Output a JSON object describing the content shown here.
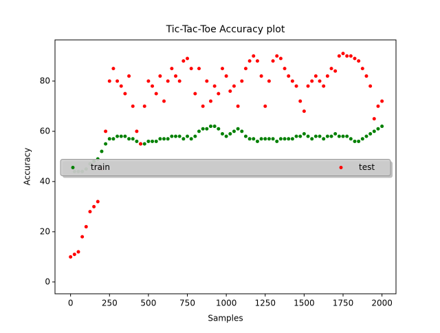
{
  "chart_data": {
    "type": "scatter",
    "title": "Tic-Tac-Toe Accuracy plot",
    "x_label": "Samples",
    "y_label": "Accuracy",
    "x": [
      0,
      25,
      50,
      75,
      100,
      125,
      150,
      175,
      200,
      225,
      250,
      275,
      300,
      325,
      350,
      375,
      400,
      425,
      450,
      475,
      500,
      525,
      550,
      575,
      600,
      625,
      650,
      675,
      700,
      725,
      750,
      775,
      800,
      825,
      850,
      875,
      900,
      925,
      950,
      975,
      1000,
      1025,
      1050,
      1075,
      1100,
      1125,
      1150,
      1175,
      1200,
      1225,
      1250,
      1275,
      1300,
      1325,
      1350,
      1375,
      1400,
      1425,
      1450,
      1475,
      1500,
      1525,
      1550,
      1575,
      1600,
      1625,
      1650,
      1675,
      1700,
      1725,
      1750,
      1775,
      1800,
      1825,
      1850,
      1875,
      1900,
      1925,
      1950,
      1975,
      2000
    ],
    "series": [
      {
        "name": "train",
        "color": "#008000",
        "values": [
          null,
          44,
          44,
          44,
          45,
          47,
          48,
          49,
          52,
          55,
          57,
          57,
          58,
          58,
          58,
          57,
          57,
          56,
          55,
          55,
          56,
          56,
          56,
          57,
          57,
          57,
          58,
          58,
          58,
          57,
          58,
          57,
          58,
          60,
          61,
          61,
          62,
          62,
          61,
          59,
          58,
          59,
          60,
          61,
          60,
          58,
          57,
          57,
          56,
          57,
          57,
          57,
          57,
          56,
          57,
          57,
          57,
          57,
          58,
          58,
          59,
          58,
          57,
          58,
          58,
          57,
          58,
          58,
          59,
          58,
          58,
          58,
          57,
          56,
          56,
          57,
          58,
          59,
          60,
          61,
          62
        ]
      },
      {
        "name": "test",
        "color": "#ff0000",
        "values": [
          10,
          11,
          12,
          18,
          22,
          28,
          30,
          32,
          45,
          60,
          80,
          85,
          80,
          78,
          75,
          82,
          70,
          60,
          55,
          70,
          80,
          78,
          75,
          82,
          72,
          80,
          85,
          82,
          80,
          88,
          89,
          85,
          75,
          85,
          70,
          80,
          72,
          78,
          75,
          85,
          82,
          76,
          78,
          70,
          80,
          85,
          88,
          90,
          88,
          82,
          70,
          80,
          88,
          90,
          89,
          85,
          82,
          80,
          78,
          72,
          68,
          78,
          80,
          82,
          80,
          78,
          82,
          85,
          84,
          90,
          91,
          90,
          90,
          89,
          88,
          85,
          82,
          78,
          65,
          70,
          72
        ]
      }
    ],
    "xlim": [
      -100,
      2090
    ],
    "ylim": [
      -4.7,
      96.4
    ],
    "xticks": [
      0,
      250,
      500,
      750,
      1000,
      1250,
      1500,
      1750,
      2000
    ],
    "yticks": [
      0,
      20,
      40,
      60,
      80
    ],
    "legend": "center"
  }
}
